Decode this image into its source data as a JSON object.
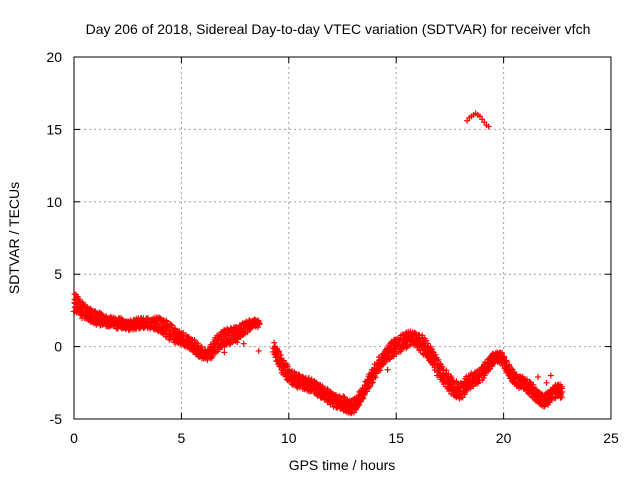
{
  "chart_data": {
    "type": "scatter",
    "title": "Day 206 of 2018, Sidereal Day-to-day VTEC variation (SDTVAR) for receiver vfch",
    "xlabel": "GPS time / hours",
    "ylabel": "SDTVAR / TECUs",
    "xlim": [
      0,
      25
    ],
    "ylim": [
      -5,
      20
    ],
    "x_ticks": [
      0,
      5,
      10,
      15,
      20,
      25
    ],
    "y_ticks": [
      -5,
      0,
      5,
      10,
      15,
      20
    ],
    "grid": true,
    "marker": "plus",
    "color": "#ff0000",
    "series": [
      {
        "name": "SDTVAR",
        "description_points": "main band traced as [x, y_center, half_band_width]",
        "points": [
          [
            0.0,
            3.0,
            0.6
          ],
          [
            0.2,
            2.9,
            0.5
          ],
          [
            0.4,
            2.5,
            0.5
          ],
          [
            0.6,
            2.3,
            0.4
          ],
          [
            0.8,
            2.1,
            0.4
          ],
          [
            1.0,
            2.0,
            0.4
          ],
          [
            1.2,
            1.9,
            0.4
          ],
          [
            1.4,
            1.8,
            0.3
          ],
          [
            1.6,
            1.7,
            0.3
          ],
          [
            1.8,
            1.7,
            0.3
          ],
          [
            2.0,
            1.6,
            0.3
          ],
          [
            2.2,
            1.6,
            0.3
          ],
          [
            2.4,
            1.5,
            0.3
          ],
          [
            2.6,
            1.5,
            0.3
          ],
          [
            2.8,
            1.5,
            0.3
          ],
          [
            3.0,
            1.6,
            0.3
          ],
          [
            3.2,
            1.6,
            0.3
          ],
          [
            3.4,
            1.6,
            0.3
          ],
          [
            3.6,
            1.6,
            0.3
          ],
          [
            3.8,
            1.6,
            0.4
          ],
          [
            4.0,
            1.5,
            0.5
          ],
          [
            4.2,
            1.3,
            0.5
          ],
          [
            4.4,
            1.1,
            0.5
          ],
          [
            4.6,
            0.9,
            0.5
          ],
          [
            4.8,
            0.7,
            0.4
          ],
          [
            5.0,
            0.6,
            0.4
          ],
          [
            5.2,
            0.4,
            0.4
          ],
          [
            5.4,
            0.2,
            0.4
          ],
          [
            5.6,
            0.0,
            0.4
          ],
          [
            5.8,
            -0.3,
            0.4
          ],
          [
            6.0,
            -0.5,
            0.3
          ],
          [
            6.2,
            -0.6,
            0.3
          ],
          [
            6.4,
            -0.3,
            0.4
          ],
          [
            6.6,
            0.1,
            0.5
          ],
          [
            6.8,
            0.4,
            0.5
          ],
          [
            7.0,
            0.6,
            0.5
          ],
          [
            7.2,
            0.7,
            0.5
          ],
          [
            7.4,
            0.8,
            0.5
          ],
          [
            7.6,
            0.9,
            0.4
          ],
          [
            7.8,
            1.1,
            0.4
          ],
          [
            8.0,
            1.3,
            0.4
          ],
          [
            8.2,
            1.5,
            0.3
          ],
          [
            8.4,
            1.7,
            0.2
          ],
          [
            8.6,
            1.6,
            0.2
          ],
          [
            9.3,
            -0.2,
            0.4
          ],
          [
            9.5,
            -0.7,
            0.5
          ],
          [
            9.7,
            -1.3,
            0.5
          ],
          [
            9.9,
            -1.8,
            0.5
          ],
          [
            10.1,
            -2.1,
            0.4
          ],
          [
            10.3,
            -2.3,
            0.4
          ],
          [
            10.5,
            -2.4,
            0.4
          ],
          [
            10.7,
            -2.5,
            0.4
          ],
          [
            10.9,
            -2.6,
            0.4
          ],
          [
            11.1,
            -2.7,
            0.4
          ],
          [
            11.3,
            -2.9,
            0.4
          ],
          [
            11.5,
            -3.1,
            0.4
          ],
          [
            11.7,
            -3.3,
            0.4
          ],
          [
            11.9,
            -3.5,
            0.4
          ],
          [
            12.1,
            -3.7,
            0.4
          ],
          [
            12.3,
            -3.8,
            0.4
          ],
          [
            12.5,
            -3.9,
            0.4
          ],
          [
            12.7,
            -4.1,
            0.4
          ],
          [
            12.9,
            -4.2,
            0.4
          ],
          [
            13.1,
            -4.0,
            0.4
          ],
          [
            13.3,
            -3.6,
            0.4
          ],
          [
            13.5,
            -3.0,
            0.4
          ],
          [
            13.7,
            -2.5,
            0.4
          ],
          [
            13.9,
            -2.0,
            0.4
          ],
          [
            14.1,
            -1.5,
            0.4
          ],
          [
            14.3,
            -1.0,
            0.4
          ],
          [
            14.5,
            -0.6,
            0.4
          ],
          [
            14.7,
            -0.3,
            0.5
          ],
          [
            14.9,
            -0.1,
            0.5
          ],
          [
            15.1,
            0.1,
            0.5
          ],
          [
            15.3,
            0.3,
            0.5
          ],
          [
            15.5,
            0.5,
            0.5
          ],
          [
            15.7,
            0.6,
            0.4
          ],
          [
            15.9,
            0.5,
            0.4
          ],
          [
            16.1,
            0.3,
            0.5
          ],
          [
            16.3,
            0.0,
            0.5
          ],
          [
            16.5,
            -0.4,
            0.5
          ],
          [
            16.7,
            -0.8,
            0.5
          ],
          [
            16.9,
            -1.3,
            0.5
          ],
          [
            17.1,
            -1.8,
            0.5
          ],
          [
            17.3,
            -2.2,
            0.5
          ],
          [
            17.5,
            -2.6,
            0.5
          ],
          [
            17.7,
            -2.9,
            0.5
          ],
          [
            17.9,
            -3.1,
            0.5
          ],
          [
            18.1,
            -3.0,
            0.5
          ],
          [
            18.3,
            -2.6,
            0.5
          ],
          [
            18.5,
            -2.3,
            0.4
          ],
          [
            18.7,
            -2.2,
            0.4
          ],
          [
            18.9,
            -2.0,
            0.4
          ],
          [
            19.1,
            -1.6,
            0.4
          ],
          [
            19.3,
            -1.2,
            0.4
          ],
          [
            19.5,
            -0.9,
            0.4
          ],
          [
            19.7,
            -0.7,
            0.3
          ],
          [
            19.9,
            -0.8,
            0.3
          ],
          [
            20.1,
            -1.3,
            0.4
          ],
          [
            20.3,
            -1.8,
            0.4
          ],
          [
            20.5,
            -2.2,
            0.4
          ],
          [
            20.7,
            -2.4,
            0.4
          ],
          [
            20.9,
            -2.5,
            0.4
          ],
          [
            21.1,
            -2.7,
            0.4
          ],
          [
            21.3,
            -3.0,
            0.4
          ],
          [
            21.5,
            -3.3,
            0.4
          ],
          [
            21.7,
            -3.6,
            0.4
          ],
          [
            21.9,
            -3.7,
            0.4
          ],
          [
            22.1,
            -3.5,
            0.4
          ],
          [
            22.3,
            -3.2,
            0.4
          ],
          [
            22.5,
            -3.0,
            0.4
          ],
          [
            22.7,
            -3.1,
            0.4
          ]
        ],
        "outlier_arc": [
          [
            18.3,
            15.6
          ],
          [
            18.4,
            15.8
          ],
          [
            18.5,
            15.9
          ],
          [
            18.6,
            16.0
          ],
          [
            18.7,
            16.1
          ],
          [
            18.8,
            16.0
          ],
          [
            18.9,
            15.9
          ],
          [
            19.0,
            15.7
          ],
          [
            19.1,
            15.5
          ],
          [
            19.2,
            15.3
          ],
          [
            19.3,
            15.2
          ]
        ],
        "extra_points": [
          [
            6.4,
            -0.5
          ],
          [
            7.0,
            -0.4
          ],
          [
            7.6,
            0.3
          ],
          [
            7.9,
            0.2
          ],
          [
            8.6,
            -0.3
          ],
          [
            14.6,
            -1.6
          ],
          [
            15.0,
            -0.2
          ],
          [
            16.9,
            -2.0
          ],
          [
            20.4,
            -2.0
          ],
          [
            21.6,
            -2.1
          ],
          [
            22.0,
            -2.5
          ],
          [
            22.2,
            -2.0
          ],
          [
            12.2,
            -4.2
          ],
          [
            12.9,
            -4.6
          ]
        ]
      }
    ]
  }
}
